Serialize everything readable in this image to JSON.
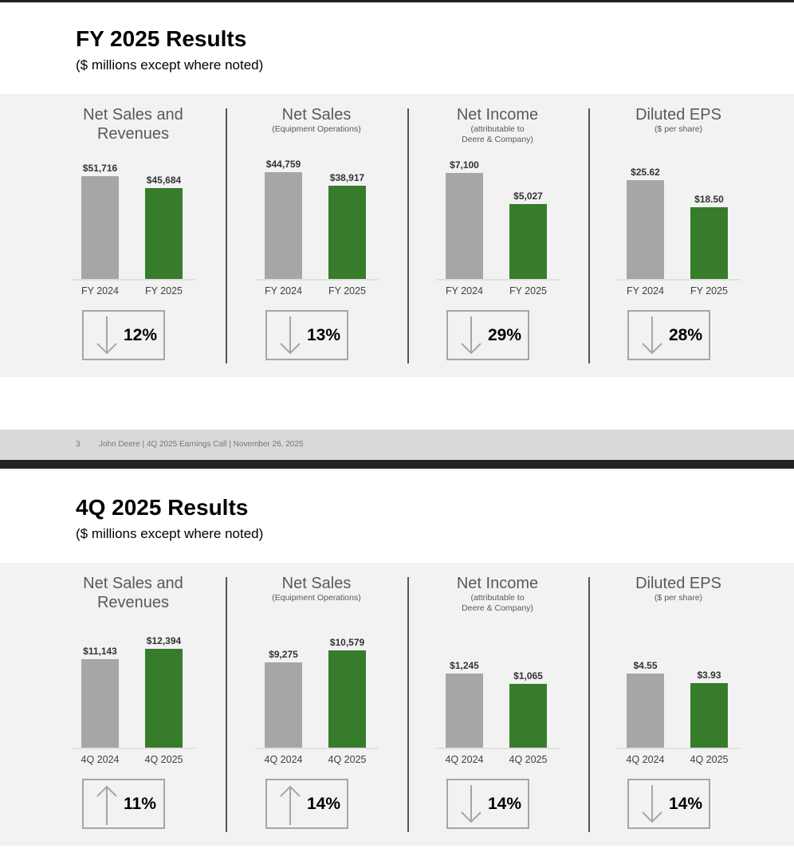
{
  "slides": [
    {
      "title": "FY 2025 Results",
      "subtitle": "($ millions except where noted)",
      "footer": {
        "page": "3",
        "text": "John Deere | 4Q 2025 Earnings Call | November 26, 2025"
      },
      "panels": [
        {
          "title": "Net Sales and Revenues",
          "sub": "",
          "categories": [
            "FY 2024",
            "FY 2025"
          ],
          "values": [
            51716,
            45684
          ],
          "labels": [
            "$51,716",
            "$45,684"
          ],
          "ylim": [
            0,
            60000
          ],
          "direction": "down",
          "change": "12%"
        },
        {
          "title": "Net Sales",
          "sub": "(Equipment Operations)",
          "categories": [
            "FY 2024",
            "FY 2025"
          ],
          "values": [
            44759,
            38917
          ],
          "labels": [
            "$44,759",
            "$38,917"
          ],
          "ylim": [
            0,
            50000
          ],
          "direction": "down",
          "change": "13%"
        },
        {
          "title": "Net Income",
          "sub": "(attributable to\nDeere & Company)",
          "categories": [
            "FY 2024",
            "FY 2025"
          ],
          "values": [
            7100,
            5027
          ],
          "labels": [
            "$7,100",
            "$5,027"
          ],
          "ylim": [
            0,
            8000
          ],
          "direction": "down",
          "change": "29%"
        },
        {
          "title": "Diluted EPS",
          "sub": "($ per share)",
          "categories": [
            "FY 2024",
            "FY 2025"
          ],
          "values": [
            25.62,
            18.5
          ],
          "labels": [
            "$25.62",
            "$18.50"
          ],
          "ylim": [
            0,
            31
          ],
          "direction": "down",
          "change": "28%"
        }
      ]
    },
    {
      "title": "4Q 2025 Results",
      "subtitle": "($ millions except where noted)",
      "panels": [
        {
          "title": "Net Sales and Revenues",
          "sub": "",
          "categories": [
            "4Q 2024",
            "4Q 2025"
          ],
          "values": [
            11143,
            12394
          ],
          "labels": [
            "$11,143",
            "$12,394"
          ],
          "ylim": [
            0,
            15000
          ],
          "direction": "up",
          "change": "11%"
        },
        {
          "title": "Net Sales",
          "sub": "(Equipment Operations)",
          "categories": [
            "4Q 2024",
            "4Q 2025"
          ],
          "values": [
            9275,
            10579
          ],
          "labels": [
            "$9,275",
            "$10,579"
          ],
          "ylim": [
            0,
            13000
          ],
          "direction": "up",
          "change": "14%"
        },
        {
          "title": "Net Income",
          "sub": "(attributable to\nDeere & Company)",
          "categories": [
            "4Q 2024",
            "4Q 2025"
          ],
          "values": [
            1245,
            1065
          ],
          "labels": [
            "$1,245",
            "$1,065"
          ],
          "ylim": [
            0,
            2000
          ],
          "direction": "down",
          "change": "14%"
        },
        {
          "title": "Diluted EPS",
          "sub": "($ per share)",
          "categories": [
            "4Q 2024",
            "4Q 2025"
          ],
          "values": [
            4.55,
            3.93
          ],
          "labels": [
            "$4.55",
            "$3.93"
          ],
          "ylim": [
            0,
            7.3
          ],
          "direction": "down",
          "change": "14%"
        }
      ]
    }
  ],
  "colors": {
    "prior": "#a6a6a6",
    "current": "#377c2b"
  }
}
